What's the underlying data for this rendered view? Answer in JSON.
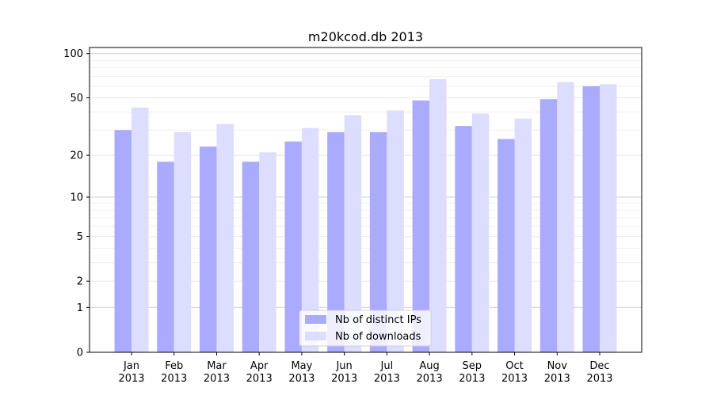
{
  "chart_data": {
    "type": "bar",
    "title": "m20kcod.db 2013",
    "xlabel": "",
    "ylabel": "",
    "yscale": "log10(1+y)",
    "ylim": [
      0,
      110
    ],
    "yticks": [
      0,
      1,
      2,
      5,
      10,
      20,
      50,
      100
    ],
    "ytick_labels": [
      "0",
      "1",
      "2",
      "5",
      "10",
      "20",
      "50",
      "100"
    ],
    "categories": [
      "Jan\n2013",
      "Feb\n2013",
      "Mar\n2013",
      "Apr\n2013",
      "May\n2013",
      "Jun\n2013",
      "Jul\n2013",
      "Aug\n2013",
      "Sep\n2013",
      "Oct\n2013",
      "Nov\n2013",
      "Dec\n2013"
    ],
    "series": [
      {
        "name": "Nb of distinct IPs",
        "color": "#aaaaff",
        "values": [
          30,
          18,
          23,
          18,
          25,
          29,
          29,
          48,
          32,
          26,
          49,
          60
        ]
      },
      {
        "name": "Nb of downloads",
        "color": "#ddddff",
        "values": [
          43,
          29,
          33,
          21,
          31,
          38,
          41,
          67,
          39,
          36,
          64,
          62
        ]
      }
    ],
    "grid": true,
    "legend_position": "bottom-center"
  }
}
